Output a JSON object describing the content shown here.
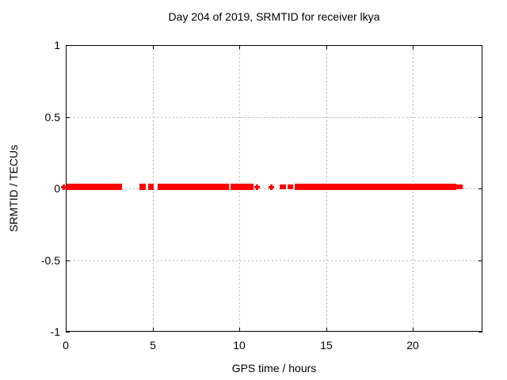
{
  "chart_data": {
    "type": "scatter",
    "title": "Day 204 of 2019, SRMTID for receiver lkya",
    "xlabel": "GPS time / hours",
    "ylabel": "SRMTID / TECUs",
    "xlim": [
      0,
      24
    ],
    "ylim": [
      -1,
      1
    ],
    "grid": true,
    "legend": "none",
    "marker": "plus",
    "series_color": "#ff0000",
    "grid_color": "#b6b6b6",
    "border_color": "#000000",
    "xticks": [
      {
        "v": 0,
        "label": "0"
      },
      {
        "v": 5,
        "label": "5"
      },
      {
        "v": 10,
        "label": "10"
      },
      {
        "v": 15,
        "label": "15"
      },
      {
        "v": 20,
        "label": "20"
      }
    ],
    "yticks": [
      {
        "v": 1,
        "label": "1"
      },
      {
        "v": 0.5,
        "label": "0.5"
      },
      {
        "v": 0,
        "label": "0"
      },
      {
        "v": -0.5,
        "label": "-0.5"
      },
      {
        "v": -1,
        "label": "-1"
      }
    ],
    "series_description": "SRMTID values hug 0 TECUs (about -0.02 to +0.03); coverage segments listed as start/end GPS hours",
    "segments": [
      {
        "start": -0.3,
        "end": 0.05,
        "weight": "point"
      },
      {
        "start": 0.05,
        "end": 3.24,
        "weight": "thick"
      },
      {
        "start": 4.24,
        "end": 4.61,
        "weight": "thick"
      },
      {
        "start": 4.74,
        "end": 5.06,
        "weight": "thick"
      },
      {
        "start": 5.29,
        "end": 9.4,
        "weight": "thick"
      },
      {
        "start": 9.49,
        "end": 10.81,
        "weight": "thick"
      },
      {
        "start": 10.9,
        "end": 11.13,
        "weight": "point"
      },
      {
        "start": 11.72,
        "end": 11.95,
        "weight": "point"
      },
      {
        "start": 12.3,
        "end": 12.68,
        "weight": "medium"
      },
      {
        "start": 12.77,
        "end": 13.09,
        "weight": "medium"
      },
      {
        "start": 13.19,
        "end": 22.49,
        "weight": "thick"
      },
      {
        "start": 22.49,
        "end": 22.86,
        "weight": "medium"
      }
    ]
  }
}
